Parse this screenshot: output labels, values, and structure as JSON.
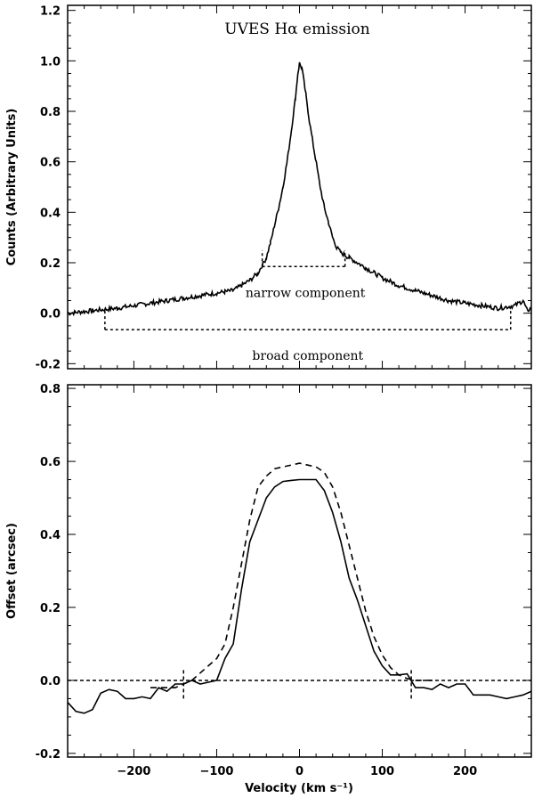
{
  "chart_data": [
    {
      "type": "line",
      "title": "UVES Hα emission",
      "xlabel": "",
      "ylabel": "Counts (Arbitrary Units)",
      "xlim": [
        -280,
        280
      ],
      "ylim": [
        -0.22,
        1.22
      ],
      "yticks": [
        -0.2,
        0.0,
        0.2,
        0.4,
        0.6,
        0.8,
        1.0,
        1.2
      ],
      "ytick_labels": [
        "-0.2",
        "0.0",
        "0.2",
        "0.4",
        "0.6",
        "0.8",
        "1.0",
        "1.2"
      ],
      "grid": false,
      "series": [
        {
          "style": "solid",
          "x": [
            -280,
            -250,
            -220,
            -200,
            -180,
            -160,
            -140,
            -120,
            -100,
            -90,
            -80,
            -70,
            -60,
            -50,
            -40,
            -35,
            -30,
            -25,
            -20,
            -15,
            -10,
            -5,
            -2,
            0,
            3,
            8,
            12,
            18,
            25,
            30,
            35,
            40,
            45,
            50,
            55,
            60,
            70,
            80,
            90,
            100,
            120,
            140,
            160,
            180,
            200,
            220,
            240,
            260,
            270,
            275,
            280
          ],
          "y": [
            0.0,
            0.01,
            0.02,
            0.03,
            0.04,
            0.05,
            0.06,
            0.07,
            0.08,
            0.085,
            0.09,
            0.11,
            0.13,
            0.16,
            0.22,
            0.28,
            0.35,
            0.42,
            0.5,
            0.6,
            0.72,
            0.85,
            0.95,
            0.99,
            0.97,
            0.86,
            0.76,
            0.64,
            0.5,
            0.42,
            0.36,
            0.3,
            0.26,
            0.24,
            0.23,
            0.22,
            0.2,
            0.18,
            0.16,
            0.14,
            0.11,
            0.09,
            0.07,
            0.05,
            0.04,
            0.03,
            0.02,
            0.03,
            0.05,
            0.01,
            0.02
          ]
        }
      ],
      "annotations": [
        {
          "text": "narrow component",
          "x": [
            -45,
            55
          ],
          "y": 0.185,
          "tick_top": 0.25
        },
        {
          "text": "broad component",
          "x": [
            -235,
            255
          ],
          "y": -0.065,
          "tick_top": 0.02
        }
      ]
    },
    {
      "type": "line",
      "title": "",
      "xlabel": "Velocity (km s⁻¹)",
      "ylabel": "Offset (arcsec)",
      "xlim": [
        -280,
        280
      ],
      "ylim": [
        -0.21,
        0.81
      ],
      "xticks": [
        -200,
        -100,
        0,
        100,
        200
      ],
      "xtick_labels": [
        "−200",
        "−100",
        "0",
        "100",
        "200"
      ],
      "yticks": [
        -0.2,
        0.0,
        0.2,
        0.4,
        0.6,
        0.8
      ],
      "ytick_labels": [
        "-0.2",
        "0.0",
        "0.2",
        "0.4",
        "0.6",
        "0.8"
      ],
      "grid": false,
      "series": [
        {
          "style": "solid",
          "x": [
            -280,
            -270,
            -260,
            -250,
            -240,
            -230,
            -220,
            -210,
            -200,
            -190,
            -180,
            -170,
            -160,
            -150,
            -140,
            -130,
            -120,
            -110,
            -100,
            -90,
            -80,
            -70,
            -60,
            -50,
            -40,
            -30,
            -20,
            -10,
            0,
            10,
            20,
            30,
            40,
            50,
            60,
            70,
            80,
            90,
            100,
            110,
            120,
            130,
            140,
            150,
            160,
            170,
            180,
            190,
            200,
            210,
            220,
            230,
            240,
            250,
            260,
            270,
            280
          ],
          "y": [
            -0.06,
            -0.085,
            -0.09,
            -0.08,
            -0.035,
            -0.025,
            -0.03,
            -0.05,
            -0.05,
            -0.045,
            -0.05,
            -0.02,
            -0.03,
            -0.01,
            -0.01,
            0.0,
            -0.01,
            -0.005,
            0.0,
            0.06,
            0.1,
            0.25,
            0.38,
            0.44,
            0.5,
            0.53,
            0.545,
            0.548,
            0.55,
            0.55,
            0.55,
            0.52,
            0.46,
            0.38,
            0.28,
            0.22,
            0.15,
            0.08,
            0.04,
            0.015,
            0.015,
            0.018,
            -0.02,
            -0.02,
            -0.025,
            -0.01,
            -0.02,
            -0.01,
            -0.01,
            -0.04,
            -0.04,
            -0.04,
            -0.045,
            -0.05,
            -0.045,
            -0.04,
            -0.03
          ]
        },
        {
          "style": "dashed",
          "x": [
            -180,
            -170,
            -160,
            -150,
            -140,
            -130,
            -120,
            -110,
            -100,
            -90,
            -80,
            -70,
            -60,
            -50,
            -40,
            -30,
            -20,
            -10,
            0,
            10,
            20,
            30,
            40,
            50,
            60,
            70,
            80,
            90,
            100,
            110,
            120,
            130,
            140,
            150,
            160
          ],
          "y": [
            -0.02,
            -0.02,
            -0.02,
            -0.02,
            -0.01,
            0.0,
            0.02,
            0.04,
            0.06,
            0.1,
            0.2,
            0.32,
            0.44,
            0.53,
            0.56,
            0.58,
            0.585,
            0.59,
            0.595,
            0.59,
            0.585,
            0.57,
            0.53,
            0.46,
            0.37,
            0.28,
            0.19,
            0.12,
            0.07,
            0.035,
            0.015,
            0.005,
            0.0,
            0.0,
            0.0
          ]
        }
      ],
      "reference_lines": {
        "horizontal_y": 0.0,
        "vertical_x": [
          -140,
          135
        ],
        "vertical_range": [
          -0.05,
          0.03
        ]
      }
    }
  ]
}
